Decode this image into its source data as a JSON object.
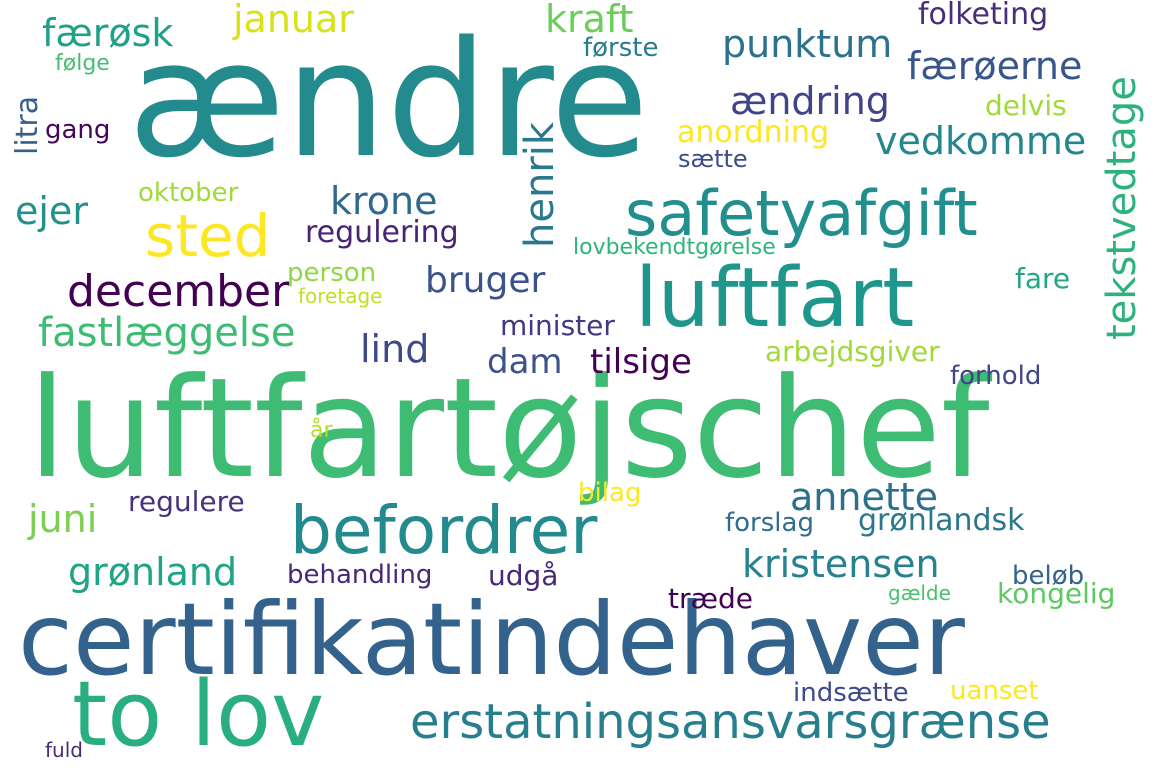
{
  "words": {
    "aendre": {
      "text": "ændre",
      "color": "#238a8d"
    },
    "luftfartojschef": {
      "text": "luftfartøjschef",
      "color": "#3fbc73"
    },
    "certifikatindehaver": {
      "text": "certifikatindehaver",
      "color": "#33638d"
    },
    "luftfart": {
      "text": "luftfart",
      "color": "#1f968b"
    },
    "to_lov": {
      "text": "to lov",
      "color": "#29af7f"
    },
    "safetyafgift": {
      "text": "safetyafgift",
      "color": "#218f8d"
    },
    "befordrer": {
      "text": "befordrer",
      "color": "#238a8d"
    },
    "erstatningsansvarsgraense": {
      "text": "erstatningsansvarsgrænse",
      "color": "#277f8e"
    },
    "sted": {
      "text": "sted",
      "color": "#fde725"
    },
    "tekstvedtage": {
      "text": "tekstvedtage",
      "color": "#2db27d"
    },
    "henrik": {
      "text": "henrik",
      "color": "#2a788e"
    },
    "december": {
      "text": "december",
      "color": "#440154"
    },
    "fastlaeggelse": {
      "text": "fastlæggelse",
      "color": "#3dbc74"
    },
    "vedkomme": {
      "text": "vedkomme",
      "color": "#24868e"
    },
    "punktum": {
      "text": "punktum",
      "color": "#2c728e"
    },
    "faeroerne": {
      "text": "færøerne",
      "color": "#39568c"
    },
    "aendring": {
      "text": "ændring",
      "color": "#414487"
    },
    "kraft": {
      "text": "kraft",
      "color": "#6ccd5a"
    },
    "januar": {
      "text": "januar",
      "color": "#d8e219"
    },
    "faerosk": {
      "text": "færøsk",
      "color": "#1fa088"
    },
    "folketing": {
      "text": "folketing",
      "color": "#472d7b"
    },
    "krone": {
      "text": "krone",
      "color": "#31688e"
    },
    "ejer": {
      "text": "ejer",
      "color": "#21918c"
    },
    "bruger": {
      "text": "bruger",
      "color": "#3b528b"
    },
    "lind": {
      "text": "lind",
      "color": "#3e4989"
    },
    "dam": {
      "text": "dam",
      "color": "#3b528b"
    },
    "tilsige": {
      "text": "tilsige",
      "color": "#440154"
    },
    "annette": {
      "text": "annette",
      "color": "#2d708e"
    },
    "juni": {
      "text": "juni",
      "color": "#7ad151"
    },
    "kristensen": {
      "text": "kristensen",
      "color": "#26828e"
    },
    "gronland": {
      "text": "grønland",
      "color": "#20a486"
    },
    "gronlandsk": {
      "text": "grønlandsk",
      "color": "#2a788e"
    },
    "anordning": {
      "text": "anordning",
      "color": "#fde725"
    },
    "regulering": {
      "text": "regulering",
      "color": "#482475"
    },
    "minister": {
      "text": "minister",
      "color": "#453781"
    },
    "arbejdsgiver": {
      "text": "arbejdsgiver",
      "color": "#a0da39"
    },
    "forhold": {
      "text": "forhold",
      "color": "#414487"
    },
    "oktober": {
      "text": "oktober",
      "color": "#a0da39"
    },
    "person": {
      "text": "person",
      "color": "#8fd744"
    },
    "regulere": {
      "text": "regulere",
      "color": "#46337e"
    },
    "forslag": {
      "text": "forslag",
      "color": "#2e6e8e"
    },
    "behandling": {
      "text": "behandling",
      "color": "#482878"
    },
    "udgaa": {
      "text": "udgå",
      "color": "#482878"
    },
    "belob": {
      "text": "beløb",
      "color": "#33638d"
    },
    "kongelig": {
      "text": "kongelig",
      "color": "#5ec962"
    },
    "traede": {
      "text": "træde",
      "color": "#440154"
    },
    "indsaette": {
      "text": "indsætte",
      "color": "#3e4989"
    },
    "uanset": {
      "text": "uanset",
      "color": "#fde725"
    },
    "forste": {
      "text": "første",
      "color": "#287c8e"
    },
    "folge": {
      "text": "følge",
      "color": "#44bf70"
    },
    "litra": {
      "text": "litra",
      "color": "#355f8d"
    },
    "gang": {
      "text": "gang",
      "color": "#450559"
    },
    "delvis": {
      "text": "delvis",
      "color": "#a0da39"
    },
    "saette": {
      "text": "sætte",
      "color": "#3e4a89"
    },
    "lovbekendtgorelse": {
      "text": "lovbekendtgørelse",
      "color": "#2fb47c"
    },
    "foretage": {
      "text": "foretage",
      "color": "#c2df23"
    },
    "fare": {
      "text": "fare",
      "color": "#22a785"
    },
    "aar": {
      "text": "år",
      "color": "#b5de2b"
    },
    "bilag": {
      "text": "bilag",
      "color": "#fde725"
    },
    "gaelde": {
      "text": "gælde",
      "color": "#4ac16d"
    },
    "fuld": {
      "text": "fuld",
      "color": "#472c7a"
    }
  }
}
